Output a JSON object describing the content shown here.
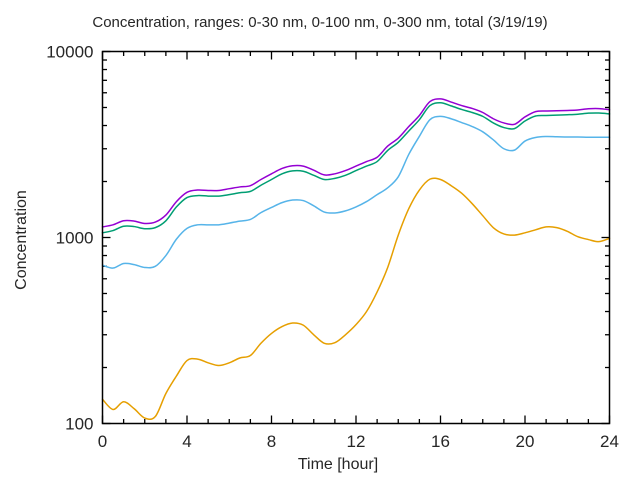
{
  "chart_data": {
    "type": "line",
    "title": "Concentration, ranges: 0-30 nm, 0-100 nm, 0-300 nm, total (3/19/19)",
    "xlabel": "Time [hour]",
    "ylabel": "Concentration",
    "x_range": [
      0,
      24
    ],
    "ylim": [
      100,
      10000
    ],
    "y_scale": "log10",
    "grid": false,
    "legend_position": "none",
    "x_minor_tick_interval": 1,
    "x_ticks": [
      {
        "value": 0,
        "label": "0"
      },
      {
        "value": 4,
        "label": "4"
      },
      {
        "value": 8,
        "label": "8"
      },
      {
        "value": 12,
        "label": "12"
      },
      {
        "value": 16,
        "label": "16"
      },
      {
        "value": 20,
        "label": "20"
      },
      {
        "value": 24,
        "label": "24"
      }
    ],
    "y_ticks": [
      {
        "value": 100,
        "label": "100"
      },
      {
        "value": 1000,
        "label": "1000"
      },
      {
        "value": 10000,
        "label": "10000"
      }
    ],
    "y_minor_ticks": [
      200,
      300,
      400,
      500,
      600,
      700,
      800,
      900,
      2000,
      3000,
      4000,
      5000,
      6000,
      7000,
      8000,
      9000
    ],
    "x": [
      0,
      0.5,
      1,
      1.5,
      2,
      2.5,
      3,
      3.5,
      4,
      4.5,
      5,
      5.5,
      6,
      6.5,
      7,
      7.5,
      8,
      8.5,
      9,
      9.5,
      10,
      10.5,
      11,
      11.5,
      12,
      12.5,
      13,
      13.5,
      14,
      14.5,
      15,
      15.5,
      16,
      16.5,
      17,
      17.5,
      18,
      18.5,
      19,
      19.5,
      20,
      20.5,
      21,
      21.5,
      22,
      22.5,
      23,
      23.5,
      24
    ],
    "series": [
      {
        "name": "total",
        "color": "#9400D3",
        "values": [
          1140,
          1170,
          1230,
          1225,
          1190,
          1210,
          1320,
          1560,
          1750,
          1800,
          1790,
          1790,
          1830,
          1870,
          1900,
          2050,
          2200,
          2350,
          2430,
          2420,
          2300,
          2170,
          2200,
          2290,
          2420,
          2560,
          2700,
          3100,
          3420,
          3950,
          4530,
          5380,
          5560,
          5350,
          5120,
          4940,
          4700,
          4350,
          4130,
          4060,
          4450,
          4750,
          4790,
          4800,
          4820,
          4850,
          4920,
          4930,
          4860
        ]
      },
      {
        "name": "0-300 nm",
        "color": "#009E73",
        "values": [
          1060,
          1090,
          1150,
          1145,
          1115,
          1130,
          1230,
          1460,
          1640,
          1680,
          1670,
          1670,
          1700,
          1740,
          1770,
          1910,
          2050,
          2200,
          2280,
          2270,
          2160,
          2050,
          2080,
          2160,
          2290,
          2420,
          2560,
          2940,
          3250,
          3740,
          4300,
          5120,
          5300,
          5100,
          4880,
          4700,
          4480,
          4130,
          3900,
          3850,
          4230,
          4500,
          4530,
          4550,
          4570,
          4600,
          4660,
          4670,
          4620
        ]
      },
      {
        "name": "0-100 nm",
        "color": "#56B4E9",
        "values": [
          710,
          685,
          725,
          715,
          690,
          700,
          800,
          980,
          1120,
          1170,
          1170,
          1170,
          1195,
          1225,
          1250,
          1360,
          1450,
          1540,
          1590,
          1580,
          1480,
          1370,
          1355,
          1390,
          1460,
          1560,
          1700,
          1850,
          2120,
          2800,
          3500,
          4300,
          4480,
          4350,
          4150,
          3950,
          3700,
          3350,
          3000,
          2950,
          3300,
          3450,
          3490,
          3480,
          3470,
          3470,
          3460,
          3460,
          3460
        ]
      },
      {
        "name": "0-30 nm",
        "color": "#E69F00",
        "values": [
          135,
          119,
          131,
          120,
          107,
          109,
          145,
          180,
          218,
          222,
          212,
          205,
          212,
          225,
          232,
          270,
          305,
          332,
          347,
          338,
          300,
          270,
          272,
          300,
          340,
          400,
          510,
          690,
          1030,
          1430,
          1800,
          2060,
          2050,
          1900,
          1730,
          1520,
          1310,
          1130,
          1045,
          1030,
          1060,
          1100,
          1140,
          1130,
          1080,
          1010,
          975,
          950,
          990
        ]
      }
    ]
  }
}
